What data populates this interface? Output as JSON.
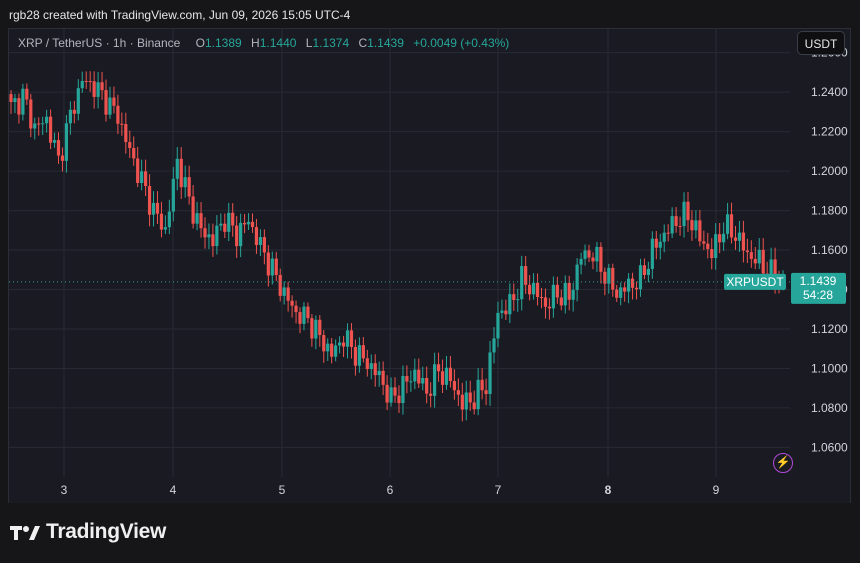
{
  "header": {
    "credit": "rgb28 created with TradingView.com, Jun 09, 2026 15:05 UTC-4"
  },
  "symbol": {
    "name": "XRP / TetherUS · 1h · Binance",
    "open_label": "O",
    "open": "1.1389",
    "high_label": "H",
    "high": "1.1440",
    "low_label": "L",
    "low": "1.1374",
    "close_label": "C",
    "close": "1.1439",
    "change": "+0.0049 (+0.43%)"
  },
  "currency_button": "USDT",
  "price_tag": {
    "ticker": "XRPUSDT",
    "price": "1.1439",
    "countdown": "54:28"
  },
  "brand": {
    "name": "TradingView"
  },
  "icons": {
    "logo": "tradingview-logo-icon",
    "bolt": "lightning-icon"
  },
  "colors": {
    "up": "#26a69a",
    "down": "#ef5350",
    "background": "#1a1b22",
    "grid": "#262a35"
  },
  "chart_data": {
    "type": "candlestick",
    "title": "XRP / TetherUS · 1h · Binance",
    "y_ticks": [
      "1.2600",
      "1.2400",
      "1.2200",
      "1.2000",
      "1.1800",
      "1.1600",
      "1.1400",
      "1.1200",
      "1.1000",
      "1.0800",
      "1.0600"
    ],
    "x_ticks": [
      "3",
      "4",
      "5",
      "6",
      "7",
      "8",
      "9"
    ],
    "ylim": [
      1.045,
      1.272
    ],
    "grid": true,
    "last_price": 1.1439,
    "anchors": [
      [
        0,
        1.232
      ],
      [
        3,
        1.238
      ],
      [
        6,
        1.222
      ],
      [
        9,
        1.226
      ],
      [
        12,
        1.205
      ],
      [
        15,
        1.228
      ],
      [
        18,
        1.246
      ],
      [
        21,
        1.243
      ],
      [
        24,
        1.236
      ],
      [
        27,
        1.228
      ],
      [
        30,
        1.21
      ],
      [
        33,
        1.195
      ],
      [
        36,
        1.18
      ],
      [
        39,
        1.17
      ],
      [
        42,
        1.205
      ],
      [
        45,
        1.185
      ],
      [
        48,
        1.17
      ],
      [
        51,
        1.165
      ],
      [
        54,
        1.176
      ],
      [
        57,
        1.168
      ],
      [
        60,
        1.175
      ],
      [
        63,
        1.162
      ],
      [
        66,
        1.15
      ],
      [
        69,
        1.138
      ],
      [
        72,
        1.128
      ],
      [
        75,
        1.125
      ],
      [
        78,
        1.116
      ],
      [
        81,
        1.107
      ],
      [
        84,
        1.116
      ],
      [
        87,
        1.108
      ],
      [
        90,
        1.103
      ],
      [
        93,
        1.096
      ],
      [
        96,
        1.084
      ],
      [
        99,
        1.091
      ],
      [
        102,
        1.098
      ],
      [
        105,
        1.088
      ],
      [
        108,
        1.099
      ],
      [
        111,
        1.094
      ],
      [
        114,
        1.082
      ],
      [
        117,
        1.085
      ],
      [
        120,
        1.092
      ],
      [
        123,
        1.128
      ],
      [
        126,
        1.132
      ],
      [
        129,
        1.145
      ],
      [
        132,
        1.14
      ],
      [
        135,
        1.132
      ],
      [
        138,
        1.138
      ],
      [
        141,
        1.136
      ],
      [
        144,
        1.157
      ],
      [
        147,
        1.158
      ],
      [
        150,
        1.148
      ],
      [
        153,
        1.138
      ],
      [
        156,
        1.142
      ],
      [
        159,
        1.145
      ],
      [
        162,
        1.16
      ],
      [
        165,
        1.168
      ],
      [
        168,
        1.175
      ],
      [
        171,
        1.178
      ],
      [
        174,
        1.166
      ],
      [
        177,
        1.158
      ],
      [
        180,
        1.172
      ],
      [
        183,
        1.168
      ],
      [
        186,
        1.158
      ],
      [
        189,
        1.154
      ],
      [
        192,
        1.148
      ],
      [
        195,
        1.1439
      ]
    ]
  }
}
